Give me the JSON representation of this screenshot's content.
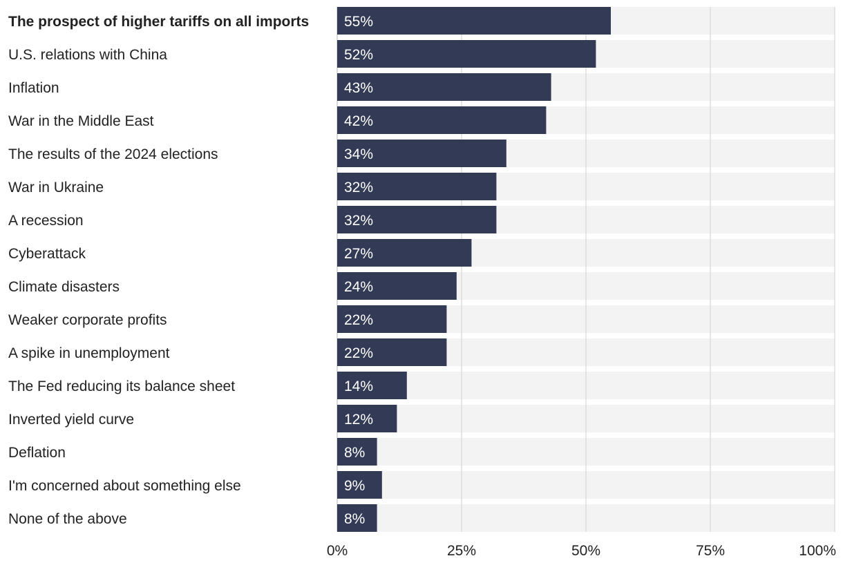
{
  "chart_data": {
    "type": "bar",
    "orientation": "horizontal",
    "title": "",
    "xlabel": "",
    "ylabel": "",
    "xlim": [
      0,
      100
    ],
    "grid": true,
    "categories": [
      "The prospect of higher tariffs on all imports",
      "U.S. relations with China",
      "Inflation",
      "War in the Middle East",
      "The results of the 2024 elections",
      "War in Ukraine",
      "A recession",
      "Cyberattack",
      "Climate disasters",
      "Weaker corporate profits",
      "A spike in unemployment",
      "The Fed reducing its balance sheet",
      "Inverted yield curve",
      "Deflation",
      "I'm concerned about something else",
      "None of the above"
    ],
    "values": [
      55,
      52,
      43,
      42,
      34,
      32,
      32,
      27,
      24,
      22,
      22,
      14,
      12,
      8,
      9,
      8
    ],
    "value_labels": [
      "55%",
      "52%",
      "43%",
      "42%",
      "34%",
      "32%",
      "32%",
      "27%",
      "24%",
      "22%",
      "22%",
      "14%",
      "12%",
      "8%",
      "9%",
      "8%"
    ],
    "highlighted_category": "The prospect of higher tariffs on all imports",
    "x_ticks": [
      0,
      25,
      50,
      75,
      100
    ],
    "x_tick_labels": [
      "0%",
      "25%",
      "50%",
      "75%",
      "100%"
    ]
  },
  "colors": {
    "bar": "#333a56",
    "track": "#f3f3f3",
    "grid": "#d6d6d6",
    "text": "#222222",
    "value_text": "#ffffff"
  }
}
